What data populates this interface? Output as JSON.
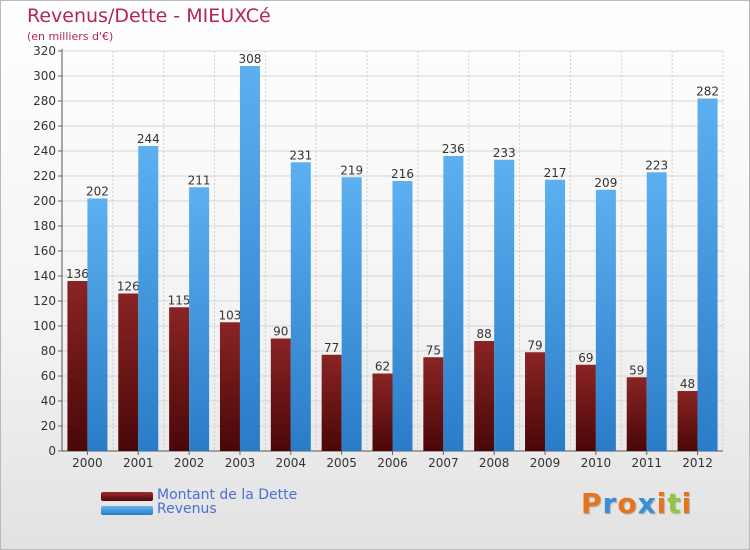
{
  "title": "Revenus/Dette - MIEUXCé",
  "subtitle": "(en milliers d'€)",
  "chart_data": {
    "type": "bar",
    "categories": [
      "2000",
      "2001",
      "2002",
      "2003",
      "2004",
      "2005",
      "2006",
      "2007",
      "2008",
      "2009",
      "2010",
      "2011",
      "2012"
    ],
    "series": [
      {
        "name": "Montant de la Dette",
        "color": "#7a1a1a",
        "values": [
          136,
          126,
          115,
          103,
          90,
          77,
          62,
          75,
          88,
          79,
          69,
          59,
          48
        ]
      },
      {
        "name": "Revenus",
        "color": "#3a8fd6",
        "values": [
          202,
          244,
          211,
          308,
          231,
          219,
          216,
          236,
          233,
          217,
          209,
          223,
          282
        ]
      }
    ],
    "ylim": [
      0,
      320
    ],
    "ytick_step": 20,
    "grid": true,
    "legend_position": "bottom-left"
  },
  "logo": {
    "text": "Proxiti",
    "colors": [
      "#e8731c",
      "#3a8fd6",
      "#e8731c",
      "#3a8fd6",
      "#e8731c",
      "#8dc63f",
      "#e8731c"
    ]
  }
}
